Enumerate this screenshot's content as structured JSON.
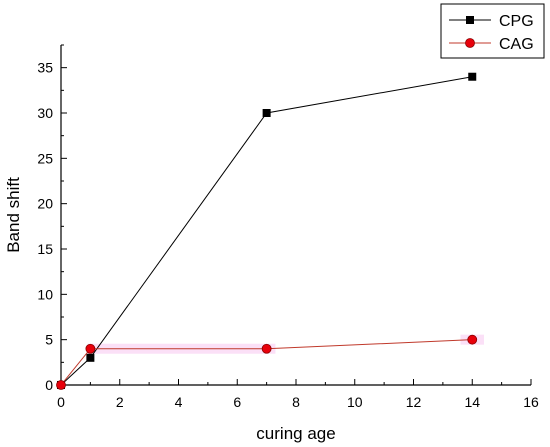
{
  "chart_data": {
    "type": "line",
    "xlabel": "curing age",
    "ylabel": "Band shift",
    "xlim": [
      0,
      16
    ],
    "ylim": [
      0,
      37.5
    ],
    "x_ticks": [
      0,
      2,
      4,
      6,
      8,
      10,
      12,
      14,
      16
    ],
    "y_ticks": [
      0,
      5,
      10,
      15,
      20,
      25,
      30,
      35
    ],
    "grid": false,
    "legend_position": "top-right",
    "series": [
      {
        "name": "CPG",
        "color": "#000000",
        "marker": "square",
        "x": [
          0,
          1,
          7,
          14
        ],
        "y": [
          0,
          3,
          30,
          34
        ]
      },
      {
        "name": "CAG",
        "color": "#e8000b",
        "marker": "circle",
        "x": [
          0,
          1,
          7,
          14
        ],
        "y": [
          0,
          4,
          4,
          5
        ]
      }
    ]
  }
}
